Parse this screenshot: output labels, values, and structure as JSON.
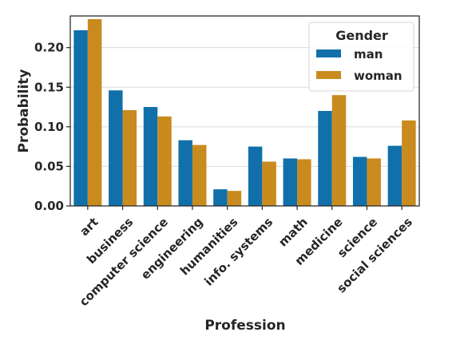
{
  "chart_data": {
    "type": "bar",
    "xlabel": "Profession",
    "ylabel": "Probability",
    "ylim": [
      0,
      0.24
    ],
    "yticks": [
      "0.00",
      "0.05",
      "0.10",
      "0.15",
      "0.20"
    ],
    "grid": "horizontal",
    "categories": [
      "art",
      "business",
      "computer science",
      "engineering",
      "humanities",
      "info. systems",
      "math",
      "medicine",
      "science",
      "social sciences"
    ],
    "series": [
      {
        "name": "man",
        "color": "#1170aa",
        "values": [
          0.222,
          0.146,
          0.125,
          0.083,
          0.021,
          0.075,
          0.06,
          0.12,
          0.062,
          0.076
        ]
      },
      {
        "name": "woman",
        "color": "#c98b1e",
        "values": [
          0.236,
          0.121,
          0.113,
          0.077,
          0.019,
          0.056,
          0.059,
          0.14,
          0.06,
          0.108
        ]
      }
    ],
    "legend": {
      "title": "Gender",
      "position": "top-right"
    }
  }
}
